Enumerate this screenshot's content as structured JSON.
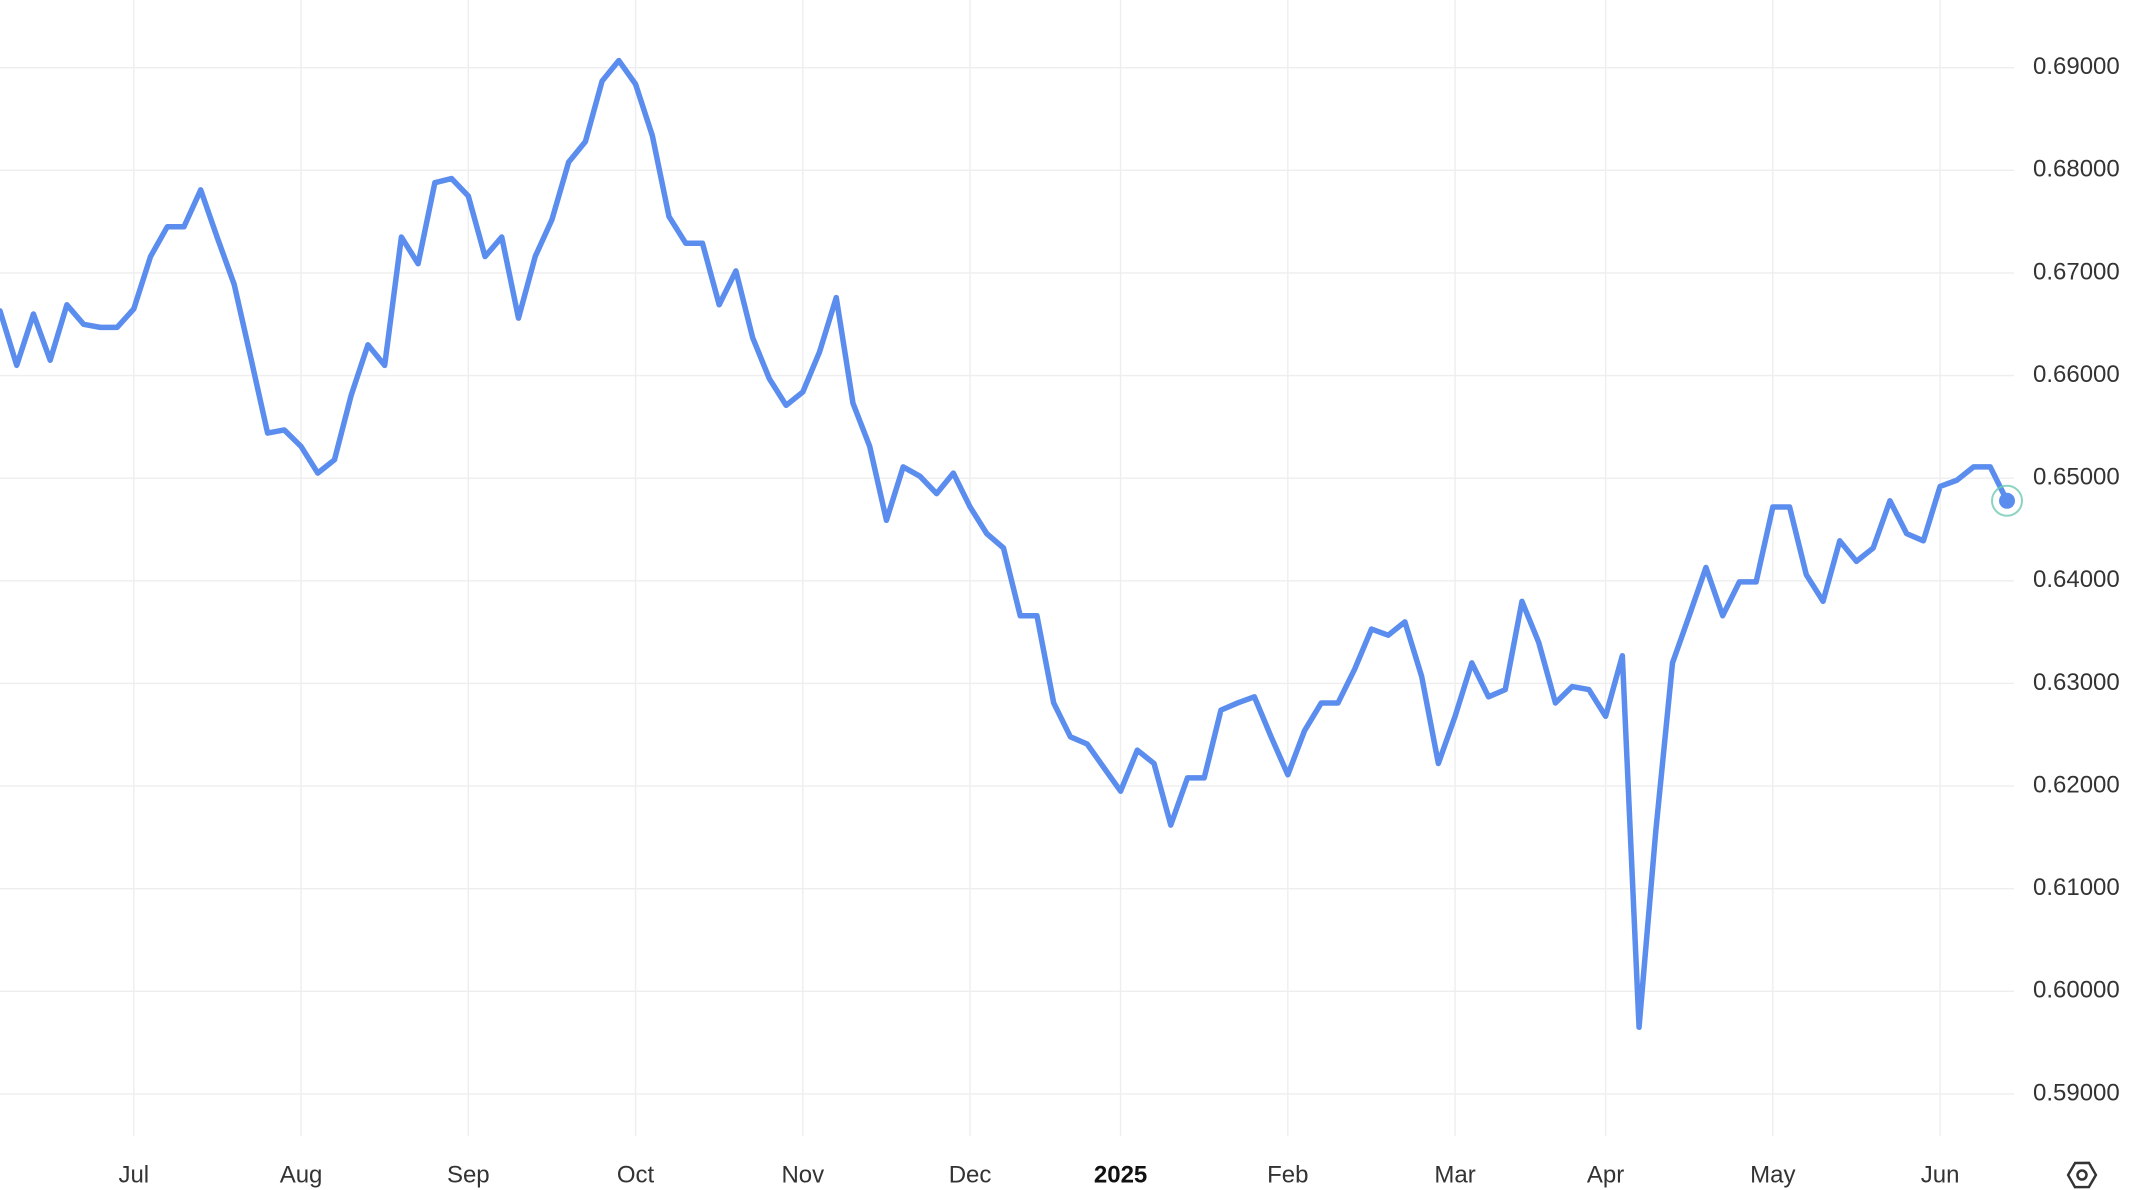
{
  "chart_data": {
    "type": "line",
    "categories": [
      null,
      null,
      null,
      null,
      null,
      null,
      null,
      null,
      "Jul",
      null,
      null,
      null,
      null,
      null,
      null,
      null,
      null,
      null,
      "Aug",
      null,
      null,
      null,
      null,
      null,
      null,
      null,
      null,
      null,
      "Sep",
      null,
      null,
      null,
      null,
      null,
      null,
      null,
      null,
      null,
      "Oct",
      null,
      null,
      null,
      null,
      null,
      null,
      null,
      null,
      null,
      "Nov",
      null,
      null,
      null,
      null,
      null,
      null,
      null,
      null,
      null,
      "Dec",
      null,
      null,
      null,
      null,
      null,
      null,
      null,
      null,
      "2025",
      null,
      null,
      null,
      null,
      null,
      null,
      null,
      null,
      null,
      "Feb",
      null,
      null,
      null,
      null,
      null,
      null,
      null,
      null,
      null,
      "Mar",
      null,
      null,
      null,
      null,
      null,
      null,
      null,
      null,
      "Apr",
      null,
      null,
      null,
      null,
      null,
      null,
      null,
      null,
      null,
      "May",
      null,
      null,
      null,
      null,
      null,
      null,
      null,
      null,
      null,
      "Jun",
      null,
      null,
      null,
      null
    ],
    "series": [
      {
        "color": "#5b8def",
        "values": [
          0.6663,
          0.661,
          0.666,
          0.6615,
          0.6669,
          0.665,
          0.6647,
          0.6647,
          0.6665,
          0.6716,
          0.6745,
          0.6745,
          0.6781,
          0.6734,
          0.6689,
          0.6617,
          0.6544,
          0.6547,
          0.6531,
          0.6505,
          0.6518,
          0.6581,
          0.663,
          0.661,
          0.6735,
          0.6709,
          0.6788,
          0.6792,
          0.6775,
          0.6716,
          0.6735,
          0.6656,
          0.6716,
          0.6752,
          0.6808,
          0.6828,
          0.6887,
          0.6907,
          0.6884,
          0.6834,
          0.6755,
          0.6729,
          0.6729,
          0.6669,
          0.6702,
          0.6637,
          0.6597,
          0.6571,
          0.6584,
          0.6623,
          0.6676,
          0.6573,
          0.6531,
          0.6459,
          0.6511,
          0.6502,
          0.6485,
          0.6505,
          0.6472,
          0.6446,
          0.6432,
          0.6366,
          0.6366,
          0.6281,
          0.6248,
          0.6241,
          0.6218,
          0.6195,
          0.6235,
          0.6222,
          0.6162,
          0.6208,
          0.6208,
          0.6274,
          0.6281,
          0.6287,
          0.6248,
          0.6211,
          0.6254,
          0.6281,
          0.6281,
          0.6314,
          0.6353,
          0.6347,
          0.636,
          0.6307,
          0.6222,
          0.6268,
          0.632,
          0.6287,
          0.6294,
          0.638,
          0.634,
          0.6281,
          0.6297,
          0.6294,
          0.6268,
          0.6327,
          0.5965,
          0.6156,
          0.632,
          0.6366,
          0.6413,
          0.6366,
          0.6399,
          0.6399,
          0.6472,
          0.6472,
          0.6406,
          0.638,
          0.6439,
          0.6419,
          0.6432,
          0.6478,
          0.6446,
          0.6439,
          0.6492,
          0.6498,
          0.6511,
          0.6511,
          0.6478
        ]
      }
    ],
    "ylim": [
      0.5859,
      0.6966
    ],
    "yticks": [
      {
        "value": 0.59,
        "label": "0.59000"
      },
      {
        "value": 0.6,
        "label": "0.60000"
      },
      {
        "value": 0.61,
        "label": "0.61000"
      },
      {
        "value": 0.62,
        "label": "0.62000"
      },
      {
        "value": 0.63,
        "label": "0.63000"
      },
      {
        "value": 0.64,
        "label": "0.64000"
      },
      {
        "value": 0.65,
        "label": "0.65000"
      },
      {
        "value": 0.66,
        "label": "0.66000"
      },
      {
        "value": 0.67,
        "label": "0.67000"
      },
      {
        "value": 0.68,
        "label": "0.68000"
      },
      {
        "value": 0.69,
        "label": "0.69000"
      }
    ],
    "grid": true
  }
}
